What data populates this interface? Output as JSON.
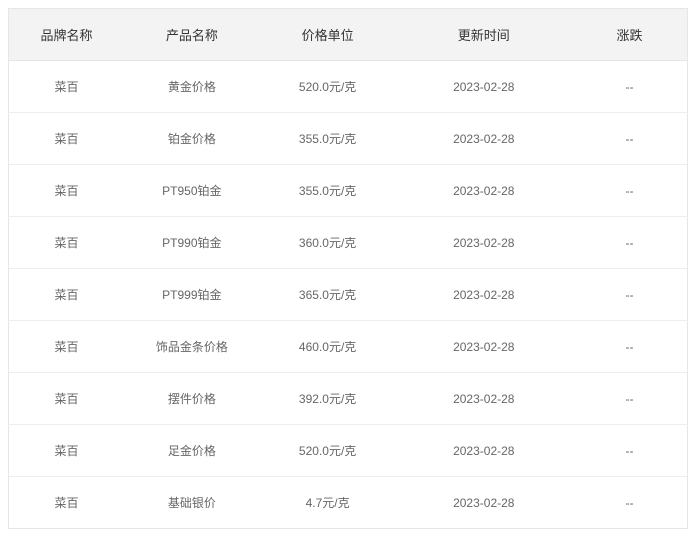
{
  "table": {
    "columns": [
      {
        "key": "brand",
        "label": "品牌名称",
        "class": "col-brand"
      },
      {
        "key": "product",
        "label": "产品名称",
        "class": "col-product"
      },
      {
        "key": "price",
        "label": "价格单位",
        "class": "col-price"
      },
      {
        "key": "date",
        "label": "更新时间",
        "class": "col-date"
      },
      {
        "key": "change",
        "label": "涨跌",
        "class": "col-change"
      }
    ],
    "rows": [
      {
        "brand": "菜百",
        "product": "黄金价格",
        "price": "520.0元/克",
        "date": "2023-02-28",
        "change": "--"
      },
      {
        "brand": "菜百",
        "product": "铂金价格",
        "price": "355.0元/克",
        "date": "2023-02-28",
        "change": "--"
      },
      {
        "brand": "菜百",
        "product": "PT950铂金",
        "price": "355.0元/克",
        "date": "2023-02-28",
        "change": "--"
      },
      {
        "brand": "菜百",
        "product": "PT990铂金",
        "price": "360.0元/克",
        "date": "2023-02-28",
        "change": "--"
      },
      {
        "brand": "菜百",
        "product": "PT999铂金",
        "price": "365.0元/克",
        "date": "2023-02-28",
        "change": "--"
      },
      {
        "brand": "菜百",
        "product": "饰品金条价格",
        "price": "460.0元/克",
        "date": "2023-02-28",
        "change": "--"
      },
      {
        "brand": "菜百",
        "product": "摆件价格",
        "price": "392.0元/克",
        "date": "2023-02-28",
        "change": "--"
      },
      {
        "brand": "菜百",
        "product": "足金价格",
        "price": "520.0元/克",
        "date": "2023-02-28",
        "change": "--"
      },
      {
        "brand": "菜百",
        "product": "基础银价",
        "price": "4.7元/克",
        "date": "2023-02-28",
        "change": "--"
      }
    ],
    "header_bg_color": "#f3f3f3",
    "header_text_color": "#333333",
    "cell_text_color": "#666666",
    "border_color": "#e6e6e6",
    "row_border_color": "#eeeeee",
    "header_fontsize": 13,
    "cell_fontsize": 12,
    "background_color": "#ffffff"
  }
}
